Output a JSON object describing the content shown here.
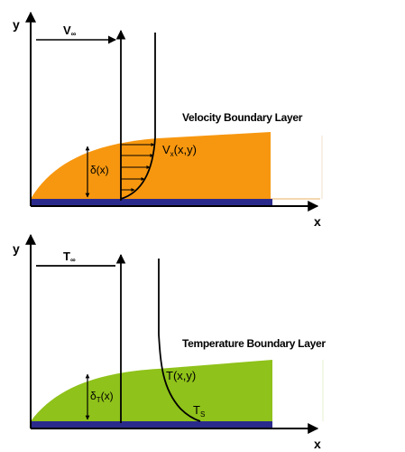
{
  "velocity_panel": {
    "axis_y": "y",
    "axis_x": "x",
    "freestream_label": "V",
    "freestream_sub": "∞",
    "thickness_label": "δ(x)",
    "profile_label_main": "V",
    "profile_label_sub": "x",
    "profile_label_args": "(x,y)",
    "title": "Velocity Boundary Layer"
  },
  "thermal_panel": {
    "axis_y": "y",
    "axis_x": "x",
    "freestream_label": "T",
    "freestream_sub": "∞",
    "thickness_label_main": "δ",
    "thickness_label_sub": "T",
    "thickness_label_args": "(x)",
    "profile_label": "T(x,y)",
    "surface_label_main": "T",
    "surface_label_sub": "S",
    "title": "Temperature Boundary Layer"
  },
  "colors": {
    "velocity_fill": "#f7970f",
    "thermal_fill": "#8fc21a",
    "plate": "#2a2a8c",
    "line": "#000000"
  }
}
